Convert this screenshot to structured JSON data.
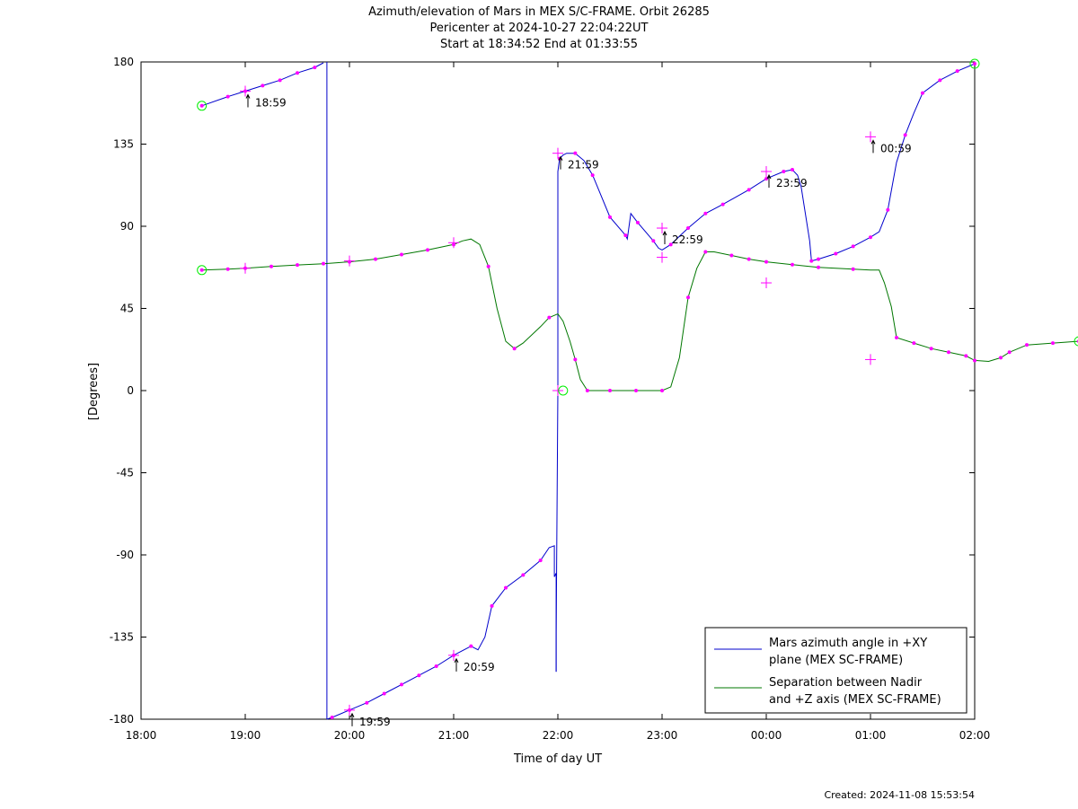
{
  "chart_data": {
    "type": "line",
    "title": [
      "Azimuth/elevation of Mars in MEX S/C-FRAME.  Orbit 26285",
      "Pericenter at 2024-10-27 22:04:22UT",
      "Start at 18:34:52 End at 01:33:55"
    ],
    "xlabel": "Time of day UT",
    "ylabel": "[Degrees]",
    "x_start": "2024-10-27 18:00",
    "x_end": "2024-10-28 02:00",
    "xlim": [
      "18:00",
      "02:00"
    ],
    "ylim": [
      -180,
      180
    ],
    "x_ticks": [
      "18:00",
      "19:00",
      "20:00",
      "21:00",
      "22:00",
      "23:00",
      "00:00",
      "01:00",
      "02:00"
    ],
    "y_ticks": [
      180,
      135,
      90,
      45,
      0,
      -45,
      -90,
      -135,
      -180
    ],
    "grid": false,
    "legend_position": "bottom-right",
    "colors": {
      "azimuth": "#0000cc",
      "separation": "#007700",
      "marker": "#ff00ff",
      "endpoint": "#00ee00"
    },
    "series": [
      {
        "name": "Mars azimuth angle in +XY\nplane (MEX SC-FRAME)",
        "color": "#0000cc",
        "segments": [
          {
            "points": [
              [
                "18:35",
                156
              ],
              [
                "18:50",
                161
              ],
              [
                "19:00",
                164
              ],
              [
                "19:10",
                167
              ],
              [
                "19:20",
                170
              ],
              [
                "19:30",
                174
              ],
              [
                "19:40",
                177
              ],
              [
                "19:45",
                179.5
              ]
            ]
          },
          {
            "points": [
              [
                "19:47",
                180
              ],
              [
                "19:47",
                -180
              ]
            ]
          },
          {
            "points": [
              [
                "19:47",
                -180
              ],
              [
                "19:50",
                -179
              ],
              [
                "20:00",
                -175
              ],
              [
                "20:10",
                -171
              ],
              [
                "20:20",
                -166
              ],
              [
                "20:30",
                -161
              ],
              [
                "20:40",
                -156
              ],
              [
                "20:50",
                -151
              ],
              [
                "21:00",
                -145
              ],
              [
                "21:10",
                -140
              ],
              [
                "21:14",
                -142
              ],
              [
                "21:18",
                -135
              ],
              [
                "21:22",
                -118
              ],
              [
                "21:30",
                -108
              ],
              [
                "21:40",
                -101
              ],
              [
                "21:50",
                -93
              ],
              [
                "21:55",
                -86
              ],
              [
                "21:58",
                -85
              ],
              [
                "21:58",
                -102
              ],
              [
                "21:59",
                -100
              ],
              [
                "21:59",
                -120
              ],
              [
                "21:59",
                -135
              ],
              [
                "21:59",
                -154
              ]
            ]
          },
          {
            "points": [
              [
                "21:59",
                -154
              ],
              [
                "21:59",
                -133
              ],
              [
                "22:00",
                0
              ],
              [
                "22:00",
                120
              ],
              [
                "22:01",
                127
              ],
              [
                "22:03",
                129
              ],
              [
                "22:05",
                130
              ],
              [
                "22:10",
                130
              ],
              [
                "22:15",
                126
              ],
              [
                "22:20",
                118
              ],
              [
                "22:30",
                95
              ],
              [
                "22:39",
                85
              ],
              [
                "22:40",
                83
              ],
              [
                "22:42",
                97
              ],
              [
                "22:46",
                92
              ],
              [
                "22:55",
                82
              ],
              [
                "22:58",
                78
              ],
              [
                "23:00",
                77
              ],
              [
                "23:05",
                80
              ],
              [
                "23:15",
                89
              ],
              [
                "23:25",
                97
              ],
              [
                "23:35",
                102
              ],
              [
                "23:50",
                110
              ],
              [
                "00:00",
                116
              ],
              [
                "00:10",
                120
              ],
              [
                "00:15",
                121
              ],
              [
                "00:18",
                118
              ],
              [
                "00:20",
                112
              ],
              [
                "00:25",
                82
              ],
              [
                "00:26",
                71
              ],
              [
                "00:30",
                72
              ],
              [
                "00:40",
                75
              ],
              [
                "00:50",
                79
              ],
              [
                "01:00",
                84
              ],
              [
                "01:05",
                87
              ],
              [
                "01:10",
                99
              ],
              [
                "01:15",
                125
              ],
              [
                "01:20",
                140
              ],
              [
                "01:25",
                152
              ],
              [
                "01:30",
                163
              ],
              [
                "01:40",
                170
              ],
              [
                "01:50",
                175
              ],
              [
                "02:00",
                179
              ]
            ]
          }
        ]
      },
      {
        "name": "Separation between Nadir\nand +Z axis (MEX SC-FRAME)",
        "color": "#007700",
        "segments": [
          {
            "points": [
              [
                "18:35",
                66
              ],
              [
                "18:50",
                66.5
              ],
              [
                "19:00",
                67
              ],
              [
                "19:15",
                68
              ],
              [
                "19:30",
                68.8
              ],
              [
                "19:45",
                69.5
              ],
              [
                "20:00",
                70.5
              ],
              [
                "20:15",
                72
              ],
              [
                "20:30",
                74.5
              ],
              [
                "20:45",
                77
              ],
              [
                "21:00",
                80
              ],
              [
                "21:05",
                82
              ],
              [
                "21:10",
                83
              ],
              [
                "21:15",
                80
              ],
              [
                "21:20",
                68
              ],
              [
                "21:25",
                45
              ],
              [
                "21:30",
                27
              ],
              [
                "21:35",
                23
              ],
              [
                "21:40",
                26
              ],
              [
                "21:50",
                35
              ],
              [
                "21:55",
                40
              ],
              [
                "22:00",
                42
              ],
              [
                "22:03",
                38
              ],
              [
                "22:07",
                27
              ],
              [
                "22:10",
                17
              ],
              [
                "22:13",
                6
              ],
              [
                "22:17",
                0
              ],
              [
                "22:30",
                0
              ],
              [
                "22:45",
                0
              ],
              [
                "23:00",
                0
              ],
              [
                "23:05",
                2
              ],
              [
                "23:10",
                18
              ],
              [
                "23:15",
                51
              ],
              [
                "23:20",
                67
              ],
              [
                "23:25",
                76
              ],
              [
                "23:30",
                76
              ],
              [
                "23:40",
                74
              ],
              [
                "23:50",
                72
              ],
              [
                "00:00",
                70.5
              ],
              [
                "00:15",
                69
              ],
              [
                "00:30",
                67.5
              ],
              [
                "00:50",
                66.5
              ],
              [
                "01:00",
                66
              ],
              [
                "01:05",
                66
              ],
              [
                "01:08",
                59
              ],
              [
                "01:12",
                46
              ],
              [
                "01:15",
                29
              ],
              [
                "01:25",
                26
              ],
              [
                "01:35",
                23
              ],
              [
                "01:45",
                21
              ],
              [
                "01:55",
                19
              ],
              [
                "02:00",
                16.5
              ],
              [
                "02:08",
                16
              ],
              [
                "02:15",
                18
              ],
              [
                "02:20",
                21
              ],
              [
                "02:30",
                25
              ],
              [
                "02:45",
                26
              ],
              [
                "03:00",
                27
              ]
            ]
          }
        ]
      }
    ],
    "markers": [
      [
        "18:35",
        156
      ],
      [
        "18:50",
        161
      ],
      [
        "19:00",
        164
      ],
      [
        "19:10",
        167
      ],
      [
        "19:20",
        170
      ],
      [
        "19:30",
        174
      ],
      [
        "19:40",
        177
      ],
      [
        "19:50",
        -179
      ],
      [
        "20:00",
        -175
      ],
      [
        "20:10",
        -171
      ],
      [
        "20:20",
        -166
      ],
      [
        "20:30",
        -161
      ],
      [
        "20:40",
        -156
      ],
      [
        "20:50",
        -151
      ],
      [
        "21:00",
        -145
      ],
      [
        "21:10",
        -140
      ],
      [
        "21:22",
        -118
      ],
      [
        "21:30",
        -108
      ],
      [
        "21:40",
        -101
      ],
      [
        "21:50",
        -93
      ],
      [
        "22:01",
        127
      ],
      [
        "22:10",
        130
      ],
      [
        "22:20",
        118
      ],
      [
        "22:30",
        95
      ],
      [
        "22:39",
        85
      ],
      [
        "22:46",
        92
      ],
      [
        "22:55",
        82
      ],
      [
        "23:05",
        80
      ],
      [
        "23:15",
        89
      ],
      [
        "23:25",
        97
      ],
      [
        "23:35",
        102
      ],
      [
        "23:50",
        110
      ],
      [
        "00:00",
        116
      ],
      [
        "00:10",
        120
      ],
      [
        "00:15",
        121
      ],
      [
        "00:26",
        71
      ],
      [
        "00:30",
        72
      ],
      [
        "00:40",
        75
      ],
      [
        "00:50",
        79
      ],
      [
        "01:00",
        84
      ],
      [
        "01:10",
        99
      ],
      [
        "01:20",
        140
      ],
      [
        "01:30",
        163
      ],
      [
        "01:40",
        170
      ],
      [
        "01:50",
        175
      ],
      [
        "02:00",
        179
      ],
      [
        "18:35",
        66
      ],
      [
        "18:50",
        66.5
      ],
      [
        "19:00",
        67
      ],
      [
        "19:15",
        68
      ],
      [
        "19:30",
        68.8
      ],
      [
        "19:45",
        69.5
      ],
      [
        "20:00",
        70.5
      ],
      [
        "20:15",
        72
      ],
      [
        "20:30",
        74.5
      ],
      [
        "20:45",
        77
      ],
      [
        "21:00",
        80
      ],
      [
        "21:20",
        68
      ],
      [
        "21:35",
        23
      ],
      [
        "21:55",
        40
      ],
      [
        "22:10",
        17
      ],
      [
        "22:17",
        0
      ],
      [
        "22:30",
        0
      ],
      [
        "22:45",
        0
      ],
      [
        "23:00",
        0
      ],
      [
        "23:15",
        51
      ],
      [
        "23:25",
        76
      ],
      [
        "23:40",
        74
      ],
      [
        "23:50",
        72
      ],
      [
        "00:00",
        70.5
      ],
      [
        "00:15",
        69
      ],
      [
        "00:30",
        67.5
      ],
      [
        "00:50",
        66.5
      ],
      [
        "01:15",
        29
      ],
      [
        "01:25",
        26
      ],
      [
        "01:35",
        23
      ],
      [
        "01:45",
        21
      ],
      [
        "01:55",
        19
      ],
      [
        "02:00",
        16.5
      ],
      [
        "02:15",
        18
      ],
      [
        "02:20",
        21
      ],
      [
        "02:30",
        25
      ],
      [
        "02:45",
        26
      ],
      [
        "03:00",
        27
      ]
    ],
    "crosses": [
      [
        "19:00",
        164
      ],
      [
        "20:00",
        -175
      ],
      [
        "21:00",
        -145
      ],
      [
        "22:00",
        130
      ],
      [
        "23:00",
        89
      ],
      [
        "00:00",
        120
      ],
      [
        "01:00",
        139
      ],
      [
        "19:00",
        67
      ],
      [
        "20:00",
        71
      ],
      [
        "21:00",
        81
      ],
      [
        "22:00",
        0
      ],
      [
        "23:00",
        73
      ],
      [
        "00:00",
        59
      ],
      [
        "01:00",
        17
      ]
    ],
    "circles": [
      [
        "18:35",
        156
      ],
      [
        "02:00",
        179
      ],
      [
        "18:35",
        66
      ],
      [
        "22:03",
        0
      ],
      [
        "03:00",
        27
      ]
    ],
    "annotations": [
      {
        "label": "18:59",
        "x": "19:00",
        "y": 164,
        "dir": "below"
      },
      {
        "label": "19:59",
        "x": "20:00",
        "y": -175,
        "dir": "below"
      },
      {
        "label": "20:59",
        "x": "21:00",
        "y": -145,
        "dir": "below"
      },
      {
        "label": "21:59",
        "x": "22:00",
        "y": 130,
        "dir": "below"
      },
      {
        "label": "22:59",
        "x": "23:00",
        "y": 89,
        "dir": "below"
      },
      {
        "label": "23:59",
        "x": "00:00",
        "y": 120,
        "dir": "below"
      },
      {
        "label": "00:59",
        "x": "01:00",
        "y": 139,
        "dir": "below"
      }
    ]
  },
  "footer": "Created: 2024-11-08 15:53:54"
}
